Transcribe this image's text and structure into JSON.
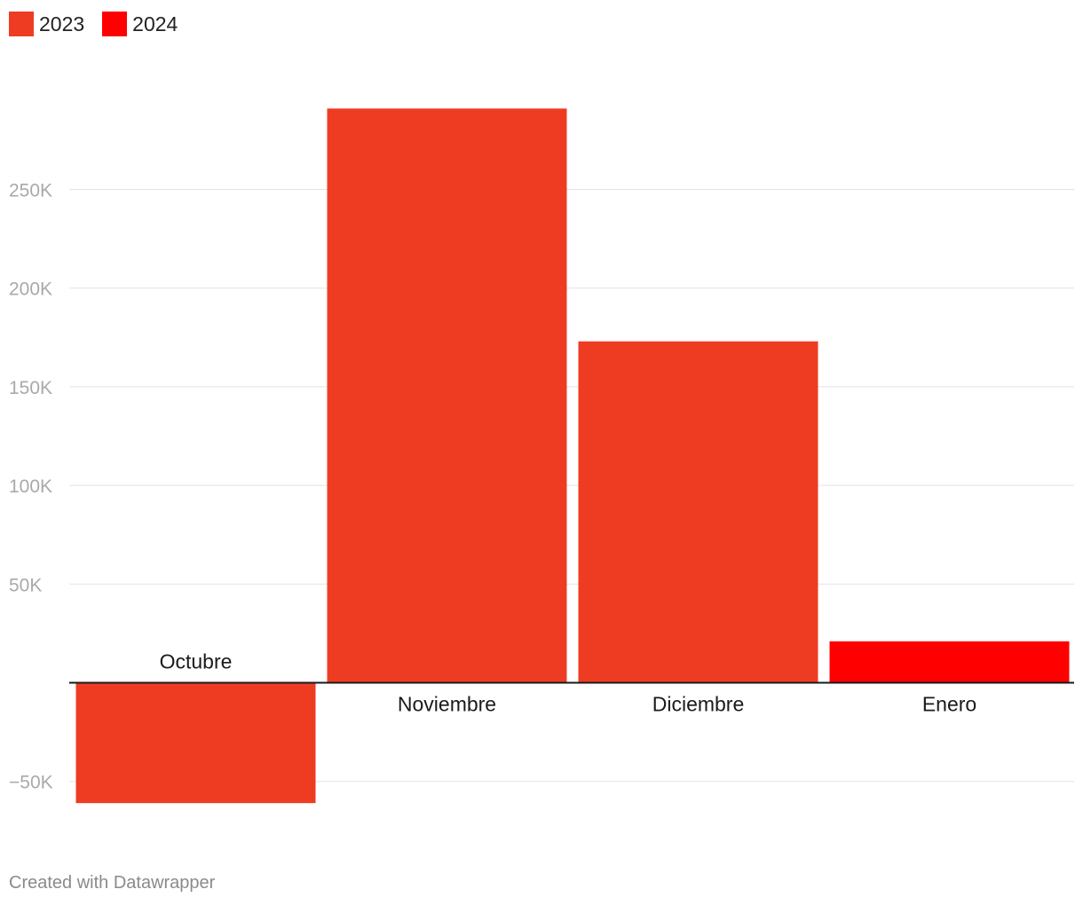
{
  "legend": [
    {
      "label": "2023",
      "color": "#ee3c23"
    },
    {
      "label": "2024",
      "color": "#ff0000"
    }
  ],
  "footer": {
    "text": "Created with Datawrapper"
  },
  "chart_data": {
    "type": "bar",
    "categories": [
      "Octubre",
      "Noviembre",
      "Diciembre",
      "Enero"
    ],
    "series": [
      {
        "name": "2023",
        "values": [
          -61000,
          291000,
          173000,
          null
        ],
        "color": "#ee3c23"
      },
      {
        "name": "2024",
        "values": [
          null,
          null,
          null,
          21000
        ],
        "color": "#ff0000"
      }
    ],
    "yticks": [
      -50000,
      50000,
      100000,
      150000,
      200000,
      250000
    ],
    "ytick_labels": [
      "−50K",
      "50K",
      "100K",
      "150K",
      "200K",
      "250K"
    ],
    "ylim": [
      -61000,
      291000
    ],
    "grid": true,
    "legend_position": "top-left"
  }
}
